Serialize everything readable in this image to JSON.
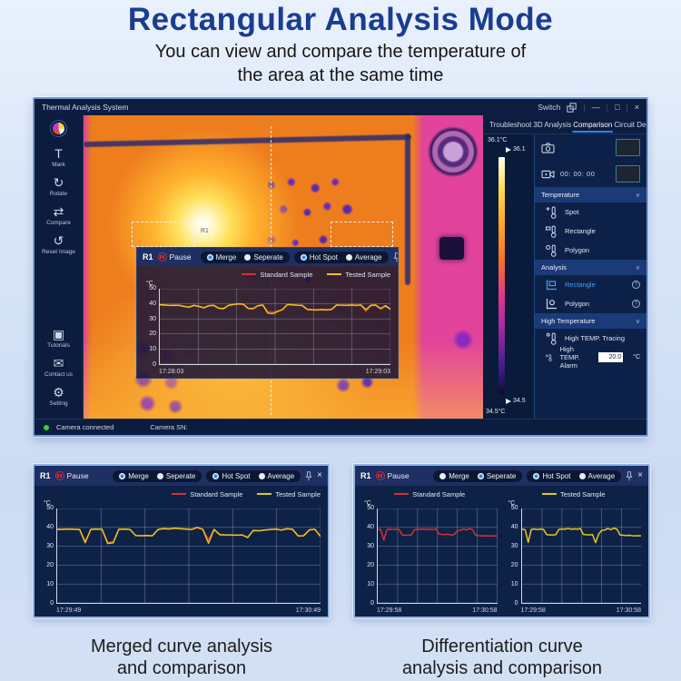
{
  "page": {
    "title": "Rectangular Analysis Mode",
    "subtitle1": "You can view and compare the temperature of",
    "subtitle2": "the area at the same time",
    "caption_left1": "Merged curve analysis",
    "caption_left2": "and comparison",
    "caption_right1": "Differentiation curve",
    "caption_right2": "analysis and comparison"
  },
  "icons": {
    "minimize": "—",
    "maximize": "□",
    "close": "×",
    "chevron": "∨",
    "mark": "T",
    "rotate": "↻",
    "compare": "⇄",
    "reset": "↺",
    "tutorials": "▣",
    "contact": "✉",
    "setting": "⚙",
    "help": "?",
    "separator": "|"
  },
  "colors": {
    "accent": "#2f86dd",
    "title_navy": "#1b3c8f",
    "line_red": "#d23232",
    "line_yellow": "#e8c51d",
    "status_green": "#35d435"
  },
  "app": {
    "title": "Thermal Analysis System",
    "switch_label": "Switch",
    "tabs": [
      {
        "label": "Troubleshoot",
        "active": false
      },
      {
        "label": "3D Analysis",
        "active": false
      },
      {
        "label": "Comparison",
        "active": true
      },
      {
        "label": "Circuit Design",
        "active": false
      }
    ],
    "sidebar": {
      "tools": [
        {
          "label": "Mark"
        },
        {
          "label": "Rotate"
        },
        {
          "label": "Compare"
        },
        {
          "label": "Reset Image"
        }
      ],
      "bottom": [
        {
          "label": "Tutorials"
        },
        {
          "label": "Contact us"
        },
        {
          "label": "Setting"
        }
      ]
    },
    "roi_label": "R1",
    "scale": {
      "max_c": "36.1°C",
      "max_t": "36.1",
      "min_t": "34.5",
      "min_c": "34.5°C"
    },
    "controls": {
      "record_time": "00: 00: 00",
      "temperature": {
        "title": "Temperature",
        "items": [
          {
            "label": "Spot"
          },
          {
            "label": "Rectangle"
          },
          {
            "label": "Polygon"
          }
        ]
      },
      "analysis": {
        "title": "Analysis",
        "items": [
          {
            "label": "Rectangle",
            "active": true
          },
          {
            "label": "Polygon",
            "active": false
          }
        ]
      },
      "high": {
        "title": "High Temperature",
        "tracing_label": "High TEMP. Tracing",
        "alarm_label": "High TEMP. Alarm",
        "alarm_value": "20.0",
        "alarm_unit": "°C"
      }
    },
    "statusbar": {
      "connected": "Camera connected",
      "sn": "Camera SN:"
    }
  },
  "panels": {
    "main": {
      "id": "R1",
      "pause_label": "Pause",
      "radios": [
        {
          "label": "Merge",
          "selected": true
        },
        {
          "label": "Seperate",
          "selected": false
        },
        {
          "label": "Hot Spot",
          "selected": true
        },
        {
          "label": "Average",
          "selected": false
        }
      ]
    },
    "bottom_left": {
      "id": "R1",
      "pause_label": "Pause",
      "radios": [
        {
          "label": "Merge",
          "selected": true
        },
        {
          "label": "Seperate",
          "selected": false
        },
        {
          "label": "Hot Spot",
          "selected": true
        },
        {
          "label": "Average",
          "selected": false
        }
      ]
    },
    "bottom_right": {
      "id": "R1",
      "pause_label": "Pause",
      "radios": [
        {
          "label": "Merge",
          "selected": false
        },
        {
          "label": "Seperate",
          "selected": true
        },
        {
          "label": "Hot Spot",
          "selected": true
        },
        {
          "label": "Average",
          "selected": false
        }
      ]
    }
  },
  "chart_data": [
    {
      "id": "main-overlay",
      "type": "line",
      "ylabel": "°C",
      "ylim": [
        0,
        50
      ],
      "yticks": [
        50,
        40,
        30,
        20,
        10,
        0
      ],
      "x_start": "17:28:03",
      "x_end": "17:29:03",
      "series": [
        {
          "name": "Standard Sample",
          "color": "#d23232",
          "values": [
            39.2,
            39,
            39,
            38.8,
            39,
            38.4,
            37.6,
            38.8,
            38.5,
            37.2,
            38.6,
            38.8,
            36.8,
            36.6,
            38.8,
            39.4,
            39.8,
            39.6,
            36.8,
            36.5,
            38.6,
            39,
            35,
            34.6,
            35.2,
            36,
            39.4,
            39.2,
            39,
            38.8,
            36.2,
            35.9,
            35.8,
            36,
            35.8,
            36.1,
            39,
            39,
            38.9,
            39,
            38.8,
            39,
            34.9,
            38.8,
            39,
            36.5,
            38.5,
            36.2
          ]
        },
        {
          "name": "Tested Sample",
          "color": "#e8c51d",
          "values": [
            39.4,
            39.2,
            38.9,
            39.1,
            39,
            38.2,
            37.9,
            39,
            38.2,
            37.4,
            38.8,
            39,
            37.1,
            36.9,
            39,
            39.6,
            40,
            39.8,
            37,
            36.8,
            38.8,
            39.2,
            33.9,
            33.5,
            34.9,
            36.2,
            39.6,
            39.4,
            39.1,
            39,
            36.4,
            36.1,
            36,
            36.2,
            36,
            36.3,
            39.2,
            39.1,
            39,
            39.2,
            39,
            39.2,
            36.1,
            39,
            39.2,
            36.8,
            38.8,
            36.4
          ]
        }
      ]
    },
    {
      "id": "merged-curve",
      "type": "line",
      "ylabel": "°C",
      "ylim": [
        0,
        50
      ],
      "yticks": [
        50,
        40,
        30,
        20,
        10,
        0
      ],
      "x_start": "17:29:49",
      "x_end": "17:30:49",
      "series": [
        {
          "name": "Standard Sample",
          "color": "#d23232",
          "values": [
            38.8,
            38.9,
            39,
            38.9,
            38.8,
            32.6,
            38.8,
            39,
            38.9,
            32.2,
            32.4,
            38.9,
            39,
            38.8,
            35.6,
            35.5,
            35.6,
            35.5,
            38.8,
            39.2,
            39,
            39.5,
            39.2,
            39,
            38.8,
            39.8,
            38.8,
            33.5,
            38.8,
            36,
            35.9,
            35.8,
            35.8,
            35.9,
            34.9,
            38.2,
            38.1,
            38.5,
            38.8,
            39,
            38.5,
            39.1,
            38.8,
            35.3,
            35.4,
            38.6,
            38.9,
            35.1
          ]
        },
        {
          "name": "Tested Sample",
          "color": "#e8c51d",
          "values": [
            39,
            39,
            39.1,
            39,
            38.9,
            31.9,
            39,
            39.1,
            39,
            31.5,
            31.8,
            39,
            39.1,
            38.9,
            35.7,
            35.6,
            35.7,
            35.6,
            38.9,
            39.4,
            39.2,
            39.6,
            39.3,
            39.1,
            38.9,
            40,
            38.9,
            31.6,
            38.9,
            36.2,
            36,
            36,
            35.9,
            36,
            34.6,
            38.4,
            38.2,
            38.6,
            38.9,
            39.1,
            38.6,
            39.3,
            39,
            35.5,
            35.6,
            38.7,
            39,
            35.2
          ]
        }
      ]
    },
    {
      "id": "separate-standard",
      "type": "line",
      "ylabel": "°C",
      "ylim": [
        0,
        50
      ],
      "yticks": [
        50,
        40,
        30,
        20,
        10,
        0
      ],
      "x_start": "17:29:58",
      "x_end": "17:30:58",
      "series": [
        {
          "name": "Standard Sample",
          "color": "#d23232",
          "values": [
            39,
            38.8,
            33.2,
            38.8,
            39,
            38.9,
            39,
            38.8,
            36,
            35.8,
            35.9,
            36,
            38.8,
            39,
            38.9,
            39.2,
            38.8,
            39,
            38.9,
            39.2,
            36.5,
            36.3,
            36.2,
            36.4,
            35.9,
            36.2,
            38.2,
            38.5,
            39.2,
            38.6,
            39.4,
            38.8,
            35.8,
            35.6,
            35.5,
            35.6,
            35.5,
            35.4,
            35.5,
            35.4
          ]
        }
      ]
    },
    {
      "id": "separate-tested",
      "type": "line",
      "ylabel": "°C",
      "ylim": [
        0,
        50
      ],
      "yticks": [
        50,
        40,
        30,
        20,
        10,
        0
      ],
      "x_start": "17:29:58",
      "x_end": "17:30:58",
      "series": [
        {
          "name": "Tested Sample",
          "color": "#e8c51d",
          "values": [
            39.1,
            38.7,
            32.1,
            38.9,
            39.1,
            38.8,
            39.1,
            38.9,
            36.2,
            36,
            36,
            36.1,
            38.9,
            39.1,
            39,
            39.4,
            39,
            39.2,
            39,
            39.4,
            36.3,
            36.1,
            36,
            36.2,
            31.9,
            36.4,
            38.4,
            38.6,
            39.4,
            38.8,
            39.6,
            39,
            36,
            35.8,
            35.7,
            35.8,
            35.6,
            35.5,
            35.6,
            35.5
          ]
        }
      ]
    }
  ]
}
